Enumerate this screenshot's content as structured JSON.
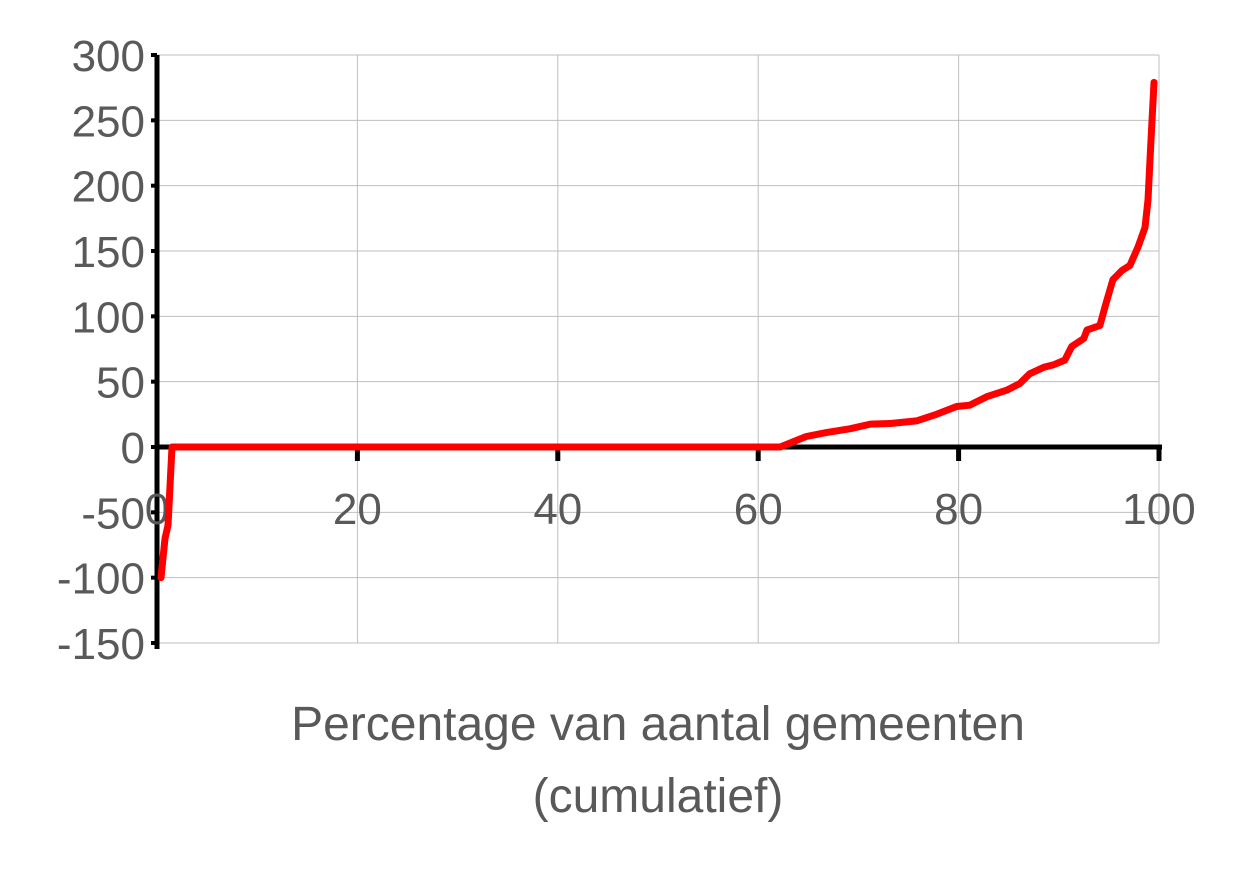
{
  "chart_data": {
    "type": "line",
    "title": "",
    "xlabel": "Percentage van aantal gemeenten (cumulatief)",
    "xlabel_lines": [
      "Percentage van aantal gemeenten",
      "(cumulatief)"
    ],
    "ylabel": "",
    "xlim": [
      0,
      100
    ],
    "ylim": [
      -150,
      300
    ],
    "xticks": [
      0,
      20,
      40,
      60,
      80,
      100
    ],
    "yticks": [
      -150,
      -100,
      -50,
      0,
      50,
      100,
      150,
      200,
      250,
      300
    ],
    "grid": true,
    "legend": "none",
    "colors": {
      "series": "#ff0000",
      "grid": "#bfbfbf",
      "axis": "#000000",
      "text": "#595959"
    },
    "series": [
      {
        "x": [
          0.4,
          0.8,
          1.1,
          1.5,
          62.2,
          63.8,
          64.8,
          66.8,
          69.2,
          71.2,
          73.2,
          75.8,
          77.8,
          79.8,
          81.1,
          82.8,
          84.8,
          86.1,
          87.1,
          88.5,
          89.5,
          90.6,
          91.3,
          92.5,
          92.8,
          94.1,
          94.6,
          95.4,
          96.3,
          97.1,
          97.9,
          98.6,
          98.9,
          99.1,
          99.5
        ],
        "y": [
          -100,
          -70,
          -60,
          0,
          0,
          5,
          8,
          11,
          14,
          17.5,
          18,
          20,
          25,
          31,
          32,
          38.5,
          43.5,
          48.5,
          56,
          61,
          63,
          66.5,
          77,
          83,
          89.5,
          93,
          107,
          128,
          135,
          139,
          153,
          168,
          189,
          220,
          279
        ]
      }
    ]
  }
}
